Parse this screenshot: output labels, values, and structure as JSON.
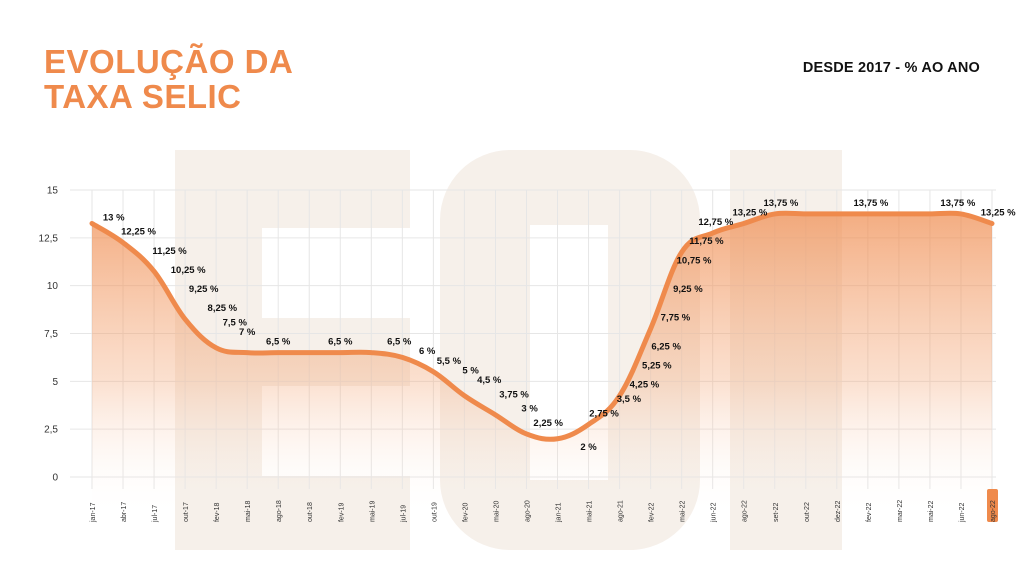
{
  "title": {
    "line1": "EVOLUÇÃO DA",
    "line2": "TAXA SELIC"
  },
  "subtitle": "DESDE 2017 - % AO ANO",
  "colors": {
    "accent": "#ef8a4c",
    "watermark": "#f6f0ea",
    "grid": "#e6e6e6",
    "text": "#111111"
  },
  "chart_data": {
    "type": "area",
    "ylim": [
      0,
      15
    ],
    "yticks": [
      "0",
      "2,5",
      "5",
      "7,5",
      "10",
      "12,5",
      "15"
    ],
    "ytick_values": [
      0,
      2.5,
      5,
      7.5,
      10,
      12.5,
      15
    ],
    "grid": true,
    "x_tick_labels": [
      "jan-17",
      "abr-17",
      "jul-17",
      "out-17",
      "fev-18",
      "mai-18",
      "ago-18",
      "out-18",
      "fev-19",
      "mai-19",
      "jul-19",
      "out-19",
      "fev-20",
      "mai-20",
      "ago-20",
      "jan-21",
      "mai-21",
      "ago-21",
      "fev-22",
      "mai-22",
      "jun-22",
      "ago-22",
      "set-22",
      "out-22",
      "dez-22",
      "fev-22",
      "mar-22",
      "mai-22",
      "jun-22",
      "ago-22"
    ],
    "highlighted_tick": "ago-22",
    "values": [
      13.25,
      12.25,
      10.75,
      8.25,
      6.75,
      6.5,
      6.5,
      6.5,
      6.5,
      6.5,
      6.25,
      5.5,
      4.25,
      3.25,
      2.25,
      2,
      2.75,
      4.25,
      7.75,
      11.75,
      12.75,
      13.25,
      13.75,
      13.75,
      13.75,
      13.75,
      13.75,
      13.75,
      13.75,
      13.25
    ],
    "data_labels": [
      {
        "text": "13 %",
        "x": 0.7,
        "y": 13
      },
      {
        "text": "12,25 %",
        "x": 1.5,
        "y": 12.25
      },
      {
        "text": "11,25 %",
        "x": 2.5,
        "y": 11.25
      },
      {
        "text": "10,25 %",
        "x": 3.1,
        "y": 10.25
      },
      {
        "text": "9,25 %",
        "x": 3.6,
        "y": 9.25
      },
      {
        "text": "8,25 %",
        "x": 4.2,
        "y": 8.25
      },
      {
        "text": "7,5 %",
        "x": 4.6,
        "y": 7.5
      },
      {
        "text": "7 %",
        "x": 5.0,
        "y": 7
      },
      {
        "text": "6,5 %",
        "x": 6.0,
        "y": 6.5
      },
      {
        "text": "6,5 %",
        "x": 8.0,
        "y": 6.5
      },
      {
        "text": "6,5 %",
        "x": 9.9,
        "y": 6.5
      },
      {
        "text": "6 %",
        "x": 10.8,
        "y": 6
      },
      {
        "text": "5,5 %",
        "x": 11.5,
        "y": 5.5
      },
      {
        "text": "5 %",
        "x": 12.2,
        "y": 5
      },
      {
        "text": "4,5 %",
        "x": 12.8,
        "y": 4.5
      },
      {
        "text": "3,75 %",
        "x": 13.6,
        "y": 3.75
      },
      {
        "text": "3 %",
        "x": 14.1,
        "y": 3
      },
      {
        "text": "2,25 %",
        "x": 14.7,
        "y": 2.25
      },
      {
        "text": "2 %",
        "x": 16.0,
        "y": 1.0
      },
      {
        "text": "2,75 %",
        "x": 16.5,
        "y": 2.75
      },
      {
        "text": "3,5 %",
        "x": 17.3,
        "y": 3.5
      },
      {
        "text": "4,25 %",
        "x": 17.8,
        "y": 4.25
      },
      {
        "text": "5,25 %",
        "x": 18.2,
        "y": 5.25
      },
      {
        "text": "6,25 %",
        "x": 18.5,
        "y": 6.25
      },
      {
        "text": "7,75 %",
        "x": 18.8,
        "y": 7.75
      },
      {
        "text": "9,25 %",
        "x": 19.2,
        "y": 9.25
      },
      {
        "text": "10,75 %",
        "x": 19.4,
        "y": 10.75
      },
      {
        "text": "11,75 %",
        "x": 19.8,
        "y": 11.75
      },
      {
        "text": "12,75 %",
        "x": 20.1,
        "y": 12.75
      },
      {
        "text": "13,25 %",
        "x": 21.2,
        "y": 13.25
      },
      {
        "text": "13,75 %",
        "x": 22.2,
        "y": 13.75
      },
      {
        "text": "13,75 %",
        "x": 25.1,
        "y": 13.75
      },
      {
        "text": "13,75 %",
        "x": 27.9,
        "y": 13.75
      },
      {
        "text": "13,25 %",
        "x": 29.2,
        "y": 13.25
      }
    ]
  }
}
